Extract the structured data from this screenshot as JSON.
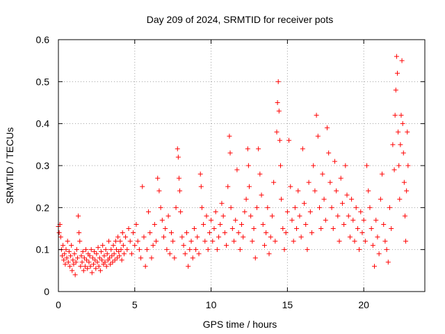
{
  "chart_data": {
    "type": "scatter",
    "title": "Day 209 of 2024, SRMTID for receiver pots",
    "xlabel": "GPS time / hours",
    "ylabel": "SRMTID / TECUs",
    "xlim": [
      0,
      24
    ],
    "ylim": [
      0,
      0.6
    ],
    "xticks": [
      0,
      5,
      10,
      15,
      20
    ],
    "xtick_labels": [
      "0",
      "5",
      "10",
      "15",
      "20"
    ],
    "yticks": [
      0,
      0.1,
      0.2,
      0.3,
      0.4,
      0.5,
      0.6
    ],
    "ytick_labels": [
      "0",
      "0.1",
      "0.2",
      "0.3",
      "0.4",
      "0.5",
      "0.6"
    ],
    "grid": true,
    "marker": "+",
    "color": "#ff0000",
    "series": [
      {
        "name": "SRMTID",
        "points": [
          [
            0.0,
            0.155
          ],
          [
            0.05,
            0.14
          ],
          [
            0.1,
            0.16
          ],
          [
            0.15,
            0.13
          ],
          [
            0.2,
            0.1
          ],
          [
            0.25,
            0.085
          ],
          [
            0.3,
            0.11
          ],
          [
            0.35,
            0.075
          ],
          [
            0.4,
            0.09
          ],
          [
            0.45,
            0.065
          ],
          [
            0.5,
            0.1
          ],
          [
            0.55,
            0.08
          ],
          [
            0.6,
            0.12
          ],
          [
            0.65,
            0.07
          ],
          [
            0.7,
            0.095
          ],
          [
            0.75,
            0.06
          ],
          [
            0.8,
            0.085
          ],
          [
            0.85,
            0.11
          ],
          [
            0.9,
            0.05
          ],
          [
            0.95,
            0.075
          ],
          [
            1.0,
            0.065
          ],
          [
            1.05,
            0.09
          ],
          [
            1.1,
            0.04
          ],
          [
            1.15,
            0.07
          ],
          [
            1.2,
            0.1
          ],
          [
            1.25,
            0.08
          ],
          [
            1.3,
            0.18
          ],
          [
            1.35,
            0.14
          ],
          [
            1.4,
            0.12
          ],
          [
            1.45,
            0.06
          ],
          [
            1.5,
            0.085
          ],
          [
            1.55,
            0.07
          ],
          [
            1.6,
            0.095
          ],
          [
            1.65,
            0.05
          ],
          [
            1.7,
            0.08
          ],
          [
            1.75,
            0.06
          ],
          [
            1.8,
            0.1
          ],
          [
            1.85,
            0.075
          ],
          [
            1.9,
            0.055
          ],
          [
            1.95,
            0.09
          ],
          [
            2.0,
            0.07
          ],
          [
            2.05,
            0.085
          ],
          [
            2.1,
            0.06
          ],
          [
            2.15,
            0.1
          ],
          [
            2.2,
            0.045
          ],
          [
            2.25,
            0.08
          ],
          [
            2.3,
            0.065
          ],
          [
            2.35,
            0.095
          ],
          [
            2.4,
            0.075
          ],
          [
            2.45,
            0.055
          ],
          [
            2.5,
            0.09
          ],
          [
            2.55,
            0.07
          ],
          [
            2.6,
            0.105
          ],
          [
            2.65,
            0.06
          ],
          [
            2.7,
            0.08
          ],
          [
            2.75,
            0.05
          ],
          [
            2.8,
            0.095
          ],
          [
            2.85,
            0.075
          ],
          [
            2.9,
            0.11
          ],
          [
            2.95,
            0.065
          ],
          [
            3.0,
            0.085
          ],
          [
            3.05,
            0.07
          ],
          [
            3.1,
            0.1
          ],
          [
            3.15,
            0.06
          ],
          [
            3.2,
            0.09
          ],
          [
            3.25,
            0.075
          ],
          [
            3.3,
            0.12
          ],
          [
            3.35,
            0.08
          ],
          [
            3.4,
            0.065
          ],
          [
            3.45,
            0.1
          ],
          [
            3.5,
            0.085
          ],
          [
            3.55,
            0.07
          ],
          [
            3.6,
            0.11
          ],
          [
            3.65,
            0.09
          ],
          [
            3.7,
            0.075
          ],
          [
            3.75,
            0.12
          ],
          [
            3.8,
            0.1
          ],
          [
            3.85,
            0.08
          ],
          [
            3.9,
            0.13
          ],
          [
            3.95,
            0.095
          ],
          [
            4.0,
            0.085
          ],
          [
            4.05,
            0.12
          ],
          [
            4.1,
            0.1
          ],
          [
            4.15,
            0.075
          ],
          [
            4.2,
            0.14
          ],
          [
            4.25,
            0.11
          ],
          [
            4.3,
            0.09
          ],
          [
            4.4,
            0.13
          ],
          [
            4.5,
            0.1
          ],
          [
            4.6,
            0.15
          ],
          [
            4.7,
            0.12
          ],
          [
            4.8,
            0.09
          ],
          [
            4.9,
            0.14
          ],
          [
            5.0,
            0.11
          ],
          [
            5.1,
            0.16
          ],
          [
            5.2,
            0.12
          ],
          [
            5.3,
            0.1
          ],
          [
            5.4,
            0.08
          ],
          [
            5.5,
            0.25
          ],
          [
            5.6,
            0.13
          ],
          [
            5.7,
            0.06
          ],
          [
            5.8,
            0.1
          ],
          [
            5.9,
            0.19
          ],
          [
            6.0,
            0.14
          ],
          [
            6.1,
            0.08
          ],
          [
            6.2,
            0.11
          ],
          [
            6.3,
            0.16
          ],
          [
            6.4,
            0.12
          ],
          [
            6.5,
            0.27
          ],
          [
            6.6,
            0.24
          ],
          [
            6.7,
            0.2
          ],
          [
            6.8,
            0.17
          ],
          [
            6.9,
            0.13
          ],
          [
            7.0,
            0.15
          ],
          [
            7.1,
            0.1
          ],
          [
            7.2,
            0.18
          ],
          [
            7.3,
            0.09
          ],
          [
            7.4,
            0.14
          ],
          [
            7.5,
            0.12
          ],
          [
            7.6,
            0.08
          ],
          [
            7.7,
            0.2
          ],
          [
            7.8,
            0.34
          ],
          [
            7.85,
            0.32
          ],
          [
            7.9,
            0.27
          ],
          [
            7.95,
            0.24
          ],
          [
            8.0,
            0.19
          ],
          [
            8.1,
            0.13
          ],
          [
            8.2,
            0.11
          ],
          [
            8.3,
            0.09
          ],
          [
            8.4,
            0.14
          ],
          [
            8.5,
            0.06
          ],
          [
            8.6,
            0.1
          ],
          [
            8.7,
            0.12
          ],
          [
            8.8,
            0.08
          ],
          [
            8.9,
            0.15
          ],
          [
            9.0,
            0.1
          ],
          [
            9.1,
            0.13
          ],
          [
            9.2,
            0.09
          ],
          [
            9.3,
            0.28
          ],
          [
            9.35,
            0.25
          ],
          [
            9.4,
            0.2
          ],
          [
            9.5,
            0.16
          ],
          [
            9.6,
            0.12
          ],
          [
            9.7,
            0.18
          ],
          [
            9.8,
            0.1
          ],
          [
            9.9,
            0.14
          ],
          [
            10.0,
            0.17
          ],
          [
            10.1,
            0.12
          ],
          [
            10.2,
            0.15
          ],
          [
            10.3,
            0.19
          ],
          [
            10.4,
            0.1
          ],
          [
            10.5,
            0.13
          ],
          [
            10.6,
            0.16
          ],
          [
            10.7,
            0.21
          ],
          [
            10.8,
            0.18
          ],
          [
            10.9,
            0.14
          ],
          [
            11.0,
            0.11
          ],
          [
            11.1,
            0.25
          ],
          [
            11.2,
            0.37
          ],
          [
            11.25,
            0.33
          ],
          [
            11.3,
            0.2
          ],
          [
            11.4,
            0.15
          ],
          [
            11.5,
            0.12
          ],
          [
            11.6,
            0.17
          ],
          [
            11.7,
            0.29
          ],
          [
            11.8,
            0.14
          ],
          [
            11.9,
            0.1
          ],
          [
            12.0,
            0.16
          ],
          [
            12.1,
            0.13
          ],
          [
            12.2,
            0.19
          ],
          [
            12.3,
            0.22
          ],
          [
            12.4,
            0.34
          ],
          [
            12.45,
            0.3
          ],
          [
            12.5,
            0.25
          ],
          [
            12.6,
            0.18
          ],
          [
            12.7,
            0.12
          ],
          [
            12.8,
            0.15
          ],
          [
            12.9,
            0.08
          ],
          [
            13.0,
            0.2
          ],
          [
            13.1,
            0.34
          ],
          [
            13.2,
            0.28
          ],
          [
            13.3,
            0.23
          ],
          [
            13.4,
            0.16
          ],
          [
            13.5,
            0.11
          ],
          [
            13.6,
            0.14
          ],
          [
            13.7,
            0.2
          ],
          [
            13.8,
            0.09
          ],
          [
            13.9,
            0.13
          ],
          [
            14.0,
            0.18
          ],
          [
            14.1,
            0.26
          ],
          [
            14.2,
            0.12
          ],
          [
            14.3,
            0.38
          ],
          [
            14.35,
            0.45
          ],
          [
            14.4,
            0.5
          ],
          [
            14.45,
            0.43
          ],
          [
            14.5,
            0.36
          ],
          [
            14.55,
            0.3
          ],
          [
            14.6,
            0.22
          ],
          [
            14.7,
            0.15
          ],
          [
            14.8,
            0.1
          ],
          [
            14.9,
            0.14
          ],
          [
            15.0,
            0.19
          ],
          [
            15.1,
            0.36
          ],
          [
            15.2,
            0.25
          ],
          [
            15.3,
            0.17
          ],
          [
            15.4,
            0.12
          ],
          [
            15.5,
            0.2
          ],
          [
            15.6,
            0.15
          ],
          [
            15.7,
            0.24
          ],
          [
            15.8,
            0.18
          ],
          [
            15.9,
            0.13
          ],
          [
            16.0,
            0.34
          ],
          [
            16.1,
            0.21
          ],
          [
            16.2,
            0.16
          ],
          [
            16.3,
            0.1
          ],
          [
            16.4,
            0.26
          ],
          [
            16.5,
            0.19
          ],
          [
            16.6,
            0.14
          ],
          [
            16.7,
            0.3
          ],
          [
            16.8,
            0.24
          ],
          [
            16.9,
            0.42
          ],
          [
            17.0,
            0.37
          ],
          [
            17.1,
            0.2
          ],
          [
            17.2,
            0.15
          ],
          [
            17.3,
            0.28
          ],
          [
            17.4,
            0.22
          ],
          [
            17.5,
            0.17
          ],
          [
            17.6,
            0.39
          ],
          [
            17.7,
            0.33
          ],
          [
            17.8,
            0.26
          ],
          [
            17.9,
            0.2
          ],
          [
            18.0,
            0.15
          ],
          [
            18.1,
            0.31
          ],
          [
            18.2,
            0.24
          ],
          [
            18.3,
            0.18
          ],
          [
            18.4,
            0.12
          ],
          [
            18.5,
            0.27
          ],
          [
            18.6,
            0.21
          ],
          [
            18.7,
            0.16
          ],
          [
            18.8,
            0.3
          ],
          [
            18.9,
            0.23
          ],
          [
            19.0,
            0.18
          ],
          [
            19.1,
            0.13
          ],
          [
            19.2,
            0.22
          ],
          [
            19.3,
            0.17
          ],
          [
            19.4,
            0.12
          ],
          [
            19.5,
            0.2
          ],
          [
            19.6,
            0.15
          ],
          [
            19.7,
            0.1
          ],
          [
            19.8,
            0.19
          ],
          [
            19.9,
            0.14
          ],
          [
            20.0,
            0.17
          ],
          [
            20.1,
            0.12
          ],
          [
            20.2,
            0.3
          ],
          [
            20.3,
            0.24
          ],
          [
            20.4,
            0.2
          ],
          [
            20.5,
            0.15
          ],
          [
            20.6,
            0.11
          ],
          [
            20.7,
            0.06
          ],
          [
            20.8,
            0.17
          ],
          [
            20.9,
            0.13
          ],
          [
            21.0,
            0.09
          ],
          [
            21.1,
            0.22
          ],
          [
            21.2,
            0.28
          ],
          [
            21.3,
            0.16
          ],
          [
            21.4,
            0.12
          ],
          [
            21.5,
            0.1
          ],
          [
            21.6,
            0.07
          ],
          [
            21.7,
            0.2
          ],
          [
            21.8,
            0.15
          ],
          [
            21.9,
            0.35
          ],
          [
            22.0,
            0.29
          ],
          [
            22.05,
            0.42
          ],
          [
            22.1,
            0.48
          ],
          [
            22.15,
            0.56
          ],
          [
            22.2,
            0.52
          ],
          [
            22.25,
            0.38
          ],
          [
            22.3,
            0.3
          ],
          [
            22.35,
            0.22
          ],
          [
            22.4,
            0.35
          ],
          [
            22.45,
            0.42
          ],
          [
            22.5,
            0.55
          ],
          [
            22.55,
            0.4
          ],
          [
            22.6,
            0.33
          ],
          [
            22.65,
            0.26
          ],
          [
            22.7,
            0.18
          ],
          [
            22.75,
            0.12
          ],
          [
            22.8,
            0.24
          ],
          [
            22.85,
            0.38
          ],
          [
            22.9,
            0.3
          ]
        ]
      }
    ]
  }
}
